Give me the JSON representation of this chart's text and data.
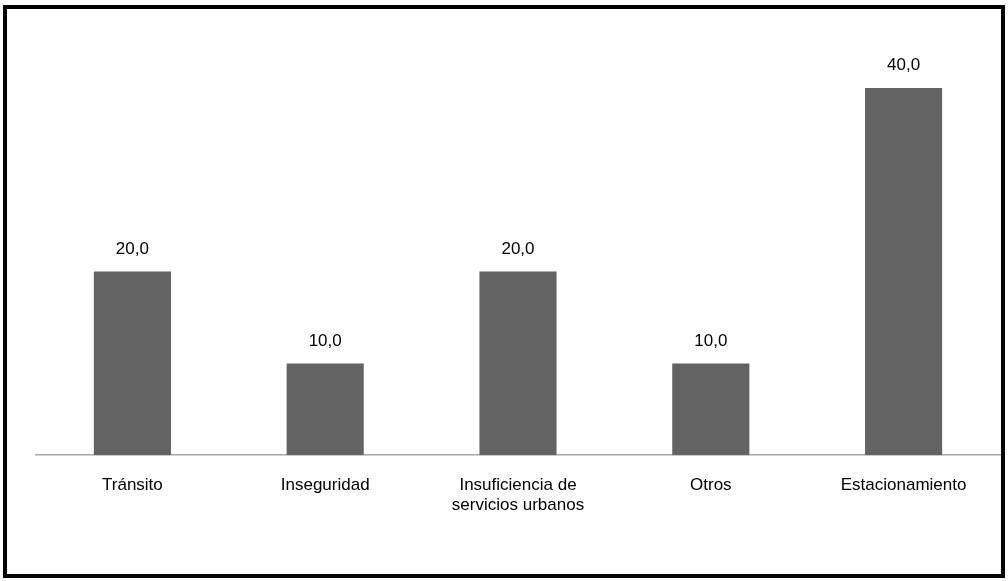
{
  "chart_data": {
    "type": "bar",
    "categories": [
      "Tránsito",
      "Inseguridad",
      "Insuficiencia de servicios urbanos",
      "Otros",
      "Estacionamiento"
    ],
    "values": [
      20,
      10,
      20,
      10,
      40
    ],
    "value_labels": [
      "20,0",
      "10,0",
      "20,0",
      "10,0",
      "40,0"
    ],
    "color": "#636363",
    "ylim": [
      0,
      40
    ],
    "grid": false,
    "legend": false,
    "tick_labels": "x"
  }
}
